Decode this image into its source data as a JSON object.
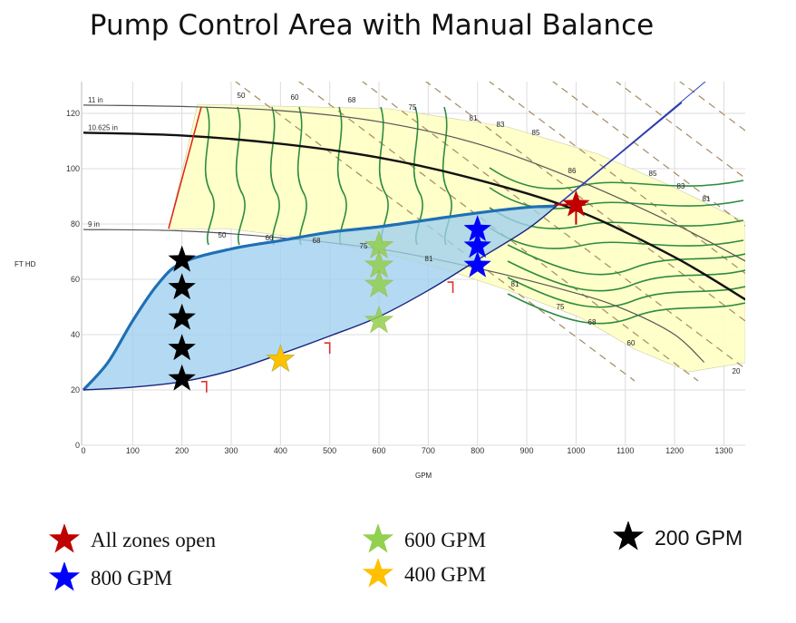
{
  "chart_data": {
    "type": "scatter",
    "title": "Pump Control Area with Manual Balance",
    "xlabel": "GPM",
    "ylabel": "FT HD",
    "xlim": [
      0,
      1350
    ],
    "ylim": [
      0,
      130
    ],
    "x_ticks": [
      0,
      100,
      200,
      300,
      400,
      500,
      600,
      700,
      800,
      900,
      1000,
      1100,
      1200,
      1300
    ],
    "y_ticks": [
      0,
      20,
      40,
      60,
      80,
      100,
      120
    ],
    "grid": true,
    "impeller_curves": [
      {
        "name": "11 in",
        "points": [
          [
            0,
            123
          ],
          [
            200,
            122.5
          ],
          [
            400,
            121
          ],
          [
            600,
            117
          ],
          [
            800,
            109
          ],
          [
            1000,
            96
          ],
          [
            1200,
            80
          ],
          [
            1350,
            66
          ]
        ]
      },
      {
        "name": "10.625 in",
        "points": [
          [
            0,
            113
          ],
          [
            200,
            112
          ],
          [
            400,
            109
          ],
          [
            600,
            104
          ],
          [
            800,
            96
          ],
          [
            1000,
            85
          ],
          [
            1200,
            68
          ],
          [
            1350,
            52
          ]
        ]
      },
      {
        "name": "9 in",
        "points": [
          [
            0,
            78
          ],
          [
            200,
            77.5
          ],
          [
            400,
            75
          ],
          [
            600,
            71
          ],
          [
            800,
            64
          ],
          [
            1000,
            55
          ],
          [
            1100,
            49
          ],
          [
            1200,
            40
          ],
          [
            1260,
            30
          ]
        ]
      }
    ],
    "efficiency_labels": [
      "50",
      "60",
      "68",
      "75",
      "81",
      "83",
      "85",
      "86",
      "85",
      "83",
      "81",
      "81",
      "75",
      "68",
      "60",
      "50",
      "60",
      "68",
      "75",
      "81",
      "20"
    ],
    "control_area": {
      "upper_curve": [
        [
          0,
          20
        ],
        [
          50,
          30
        ],
        [
          100,
          45
        ],
        [
          150,
          58
        ],
        [
          200,
          66
        ],
        [
          300,
          71
        ],
        [
          400,
          74
        ],
        [
          500,
          77
        ],
        [
          600,
          79
        ],
        [
          700,
          81.5
        ],
        [
          800,
          84
        ],
        [
          900,
          86
        ],
        [
          960,
          86.5
        ]
      ],
      "lower_curve": [
        [
          0,
          20
        ],
        [
          100,
          21
        ],
        [
          200,
          23
        ],
        [
          300,
          27
        ],
        [
          400,
          33
        ],
        [
          500,
          39.5
        ],
        [
          600,
          46.5
        ],
        [
          700,
          56
        ],
        [
          800,
          67
        ],
        [
          900,
          78
        ],
        [
          960,
          86.5
        ]
      ]
    },
    "series": [
      {
        "name": "All zones open",
        "color": "#c00000",
        "points": [
          [
            1000,
            87
          ]
        ]
      },
      {
        "name": "800 GPM",
        "color": "#0000ff",
        "points": [
          [
            800,
            78
          ],
          [
            800,
            72
          ],
          [
            800,
            65
          ]
        ]
      },
      {
        "name": "600 GPM",
        "color": "#92d050",
        "points": [
          [
            600,
            72
          ],
          [
            600,
            65
          ],
          [
            600,
            58
          ],
          [
            600,
            45
          ]
        ]
      },
      {
        "name": "400 GPM",
        "color": "#ffc000",
        "points": [
          [
            400,
            31
          ]
        ]
      },
      {
        "name": "200 GPM",
        "color": "#000000",
        "points": [
          [
            200,
            67
          ],
          [
            200,
            57
          ],
          [
            200,
            46
          ],
          [
            200,
            35
          ],
          [
            200,
            24
          ]
        ]
      }
    ],
    "legend": "bottom"
  },
  "legend": [
    {
      "label": "All zones open",
      "color": "#c00000"
    },
    {
      "label": "800 GPM",
      "color": "#0000ff"
    },
    {
      "label": "600 GPM",
      "color": "#92d050"
    },
    {
      "label": "400 GPM",
      "color": "#ffc000"
    },
    {
      "label": "200 GPM",
      "color": "#000000"
    }
  ]
}
